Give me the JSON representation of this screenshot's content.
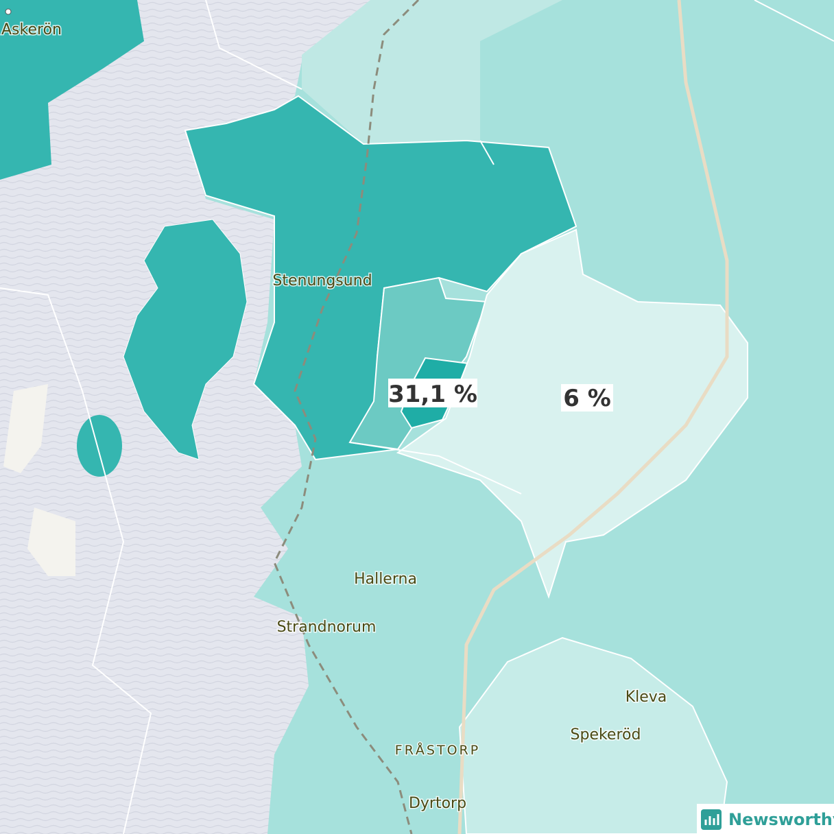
{
  "places": [
    "Askerön",
    "Stenungsund",
    "Hallerna",
    "Strandnorum",
    "FRÅSTORP",
    "Dyrtorp",
    "Kleva",
    "Spekeröd"
  ],
  "value_labels": [
    "31,1 %",
    "6 %"
  ],
  "brand": "Newsworthy"
}
